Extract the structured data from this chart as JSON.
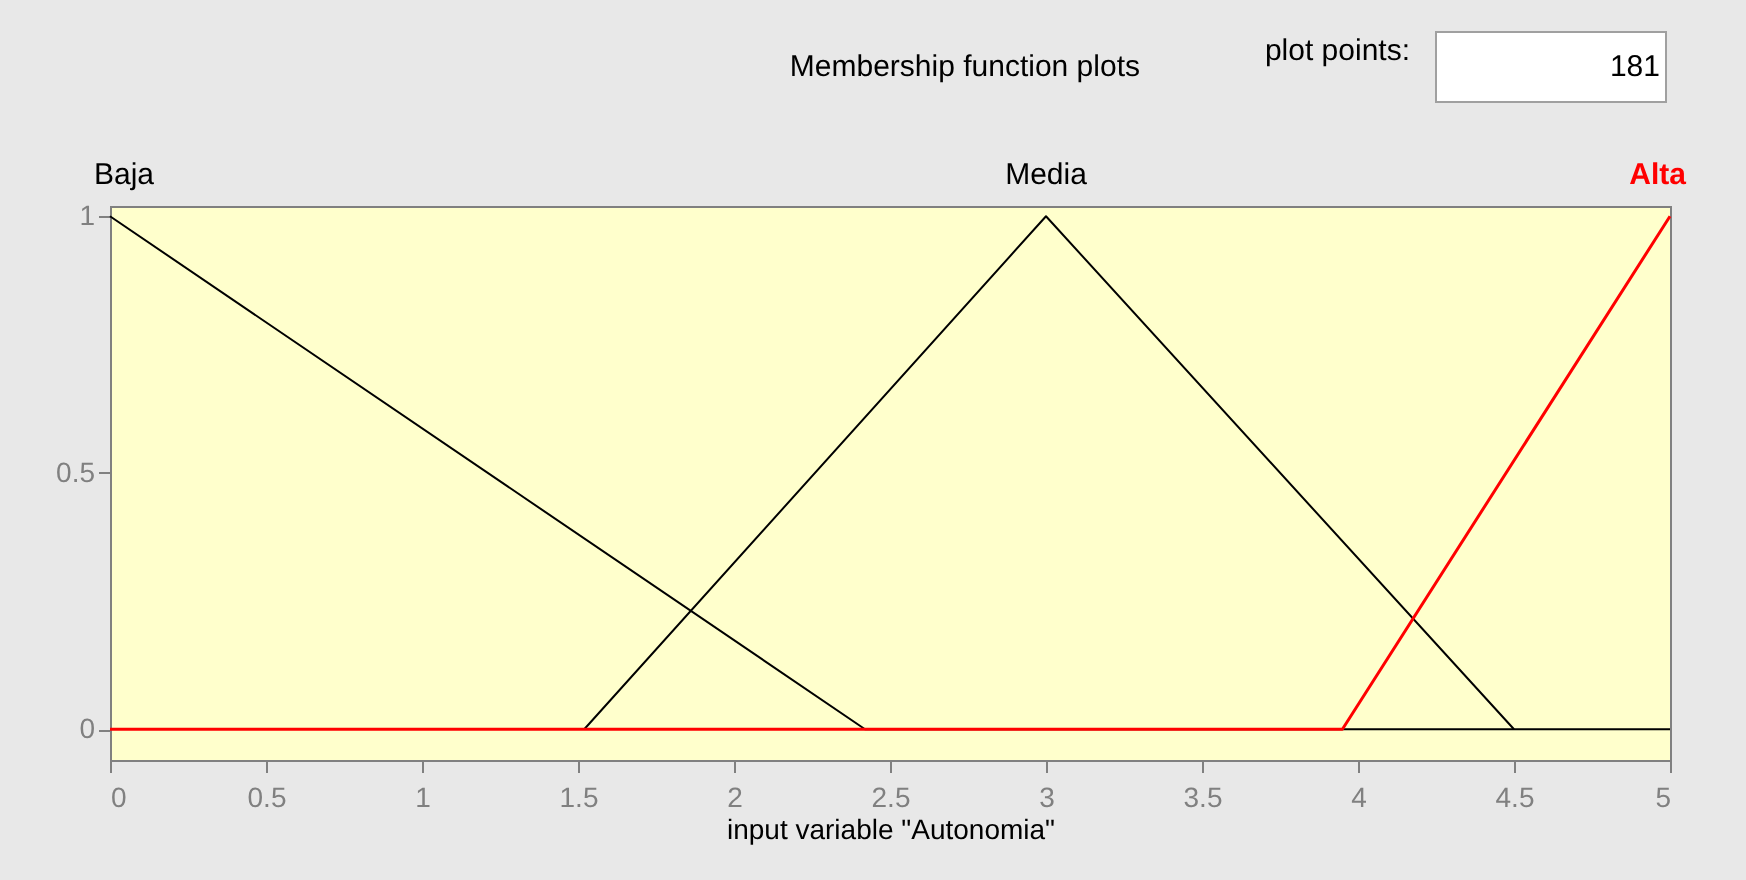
{
  "chart_data": {
    "type": "line",
    "title": "Membership function plots",
    "xlabel": "input variable \"Autonomia\"",
    "annotations": [
      "plot points:",
      "181"
    ],
    "series": [
      {
        "name": "Baja",
        "color": "#000000",
        "x": [
          0,
          2.42,
          5
        ],
        "values": [
          1,
          0,
          0
        ]
      },
      {
        "name": "Media",
        "color": "#000000",
        "x": [
          1.52,
          3,
          4.5
        ],
        "values": [
          0,
          1,
          0
        ]
      },
      {
        "name": "Alta",
        "color": "#ff0000",
        "x": [
          0,
          3.95,
          5
        ],
        "values": [
          0,
          0,
          1
        ]
      }
    ],
    "xlim": [
      0,
      5
    ],
    "xticks": [
      0,
      0.5,
      1,
      1.5,
      2,
      2.5,
      3,
      3.5,
      4,
      4.5,
      5
    ],
    "ylim": [
      -0.06,
      1.02
    ],
    "yticks": [
      0,
      0.5,
      1
    ],
    "grid": false,
    "marker": "none",
    "line_style": "solid"
  }
}
